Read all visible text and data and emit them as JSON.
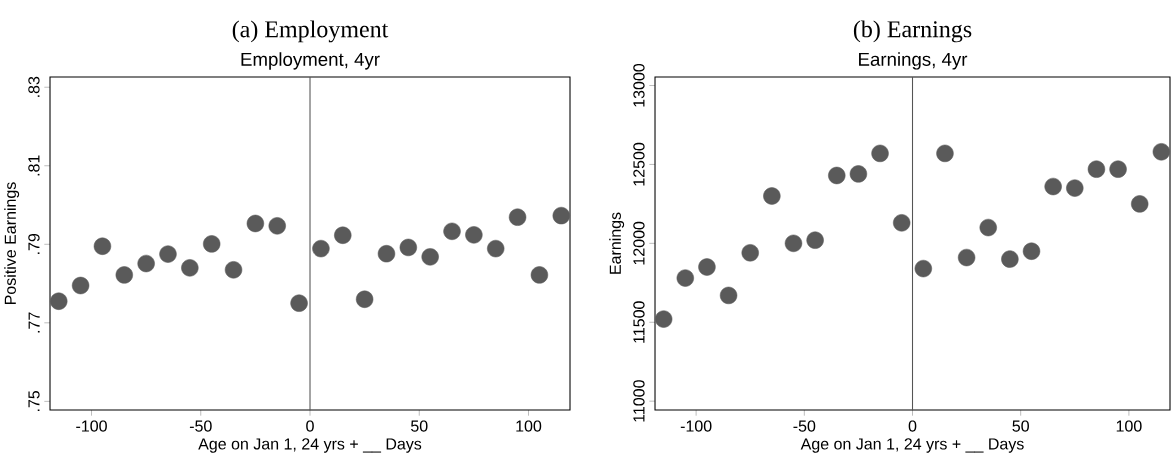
{
  "chart_data": [
    {
      "type": "scatter",
      "title": "(a) Employment",
      "subtitle": "Employment, 4yr",
      "xlabel": "Age on Jan 1, 24 yrs + __ Days",
      "ylabel": "Positive Earnings",
      "grid": false,
      "x": [
        -115,
        -105,
        -95,
        -85,
        -75,
        -65,
        -55,
        -45,
        -35,
        -25,
        -15,
        -5,
        5,
        15,
        25,
        35,
        45,
        55,
        65,
        75,
        85,
        95,
        105,
        115
      ],
      "series": [
        {
          "color": "#5a5a5a",
          "values": [
            0.7755,
            0.7795,
            0.7895,
            0.7822,
            0.7851,
            0.7875,
            0.784,
            0.7901,
            0.7835,
            0.7953,
            0.7947,
            0.775,
            0.7889,
            0.7923,
            0.776,
            0.7876,
            0.7892,
            0.7868,
            0.7933,
            0.7924,
            0.7889,
            0.7969,
            0.7822,
            0.7973
          ]
        }
      ],
      "xlim": [
        -119,
        119
      ],
      "ylim": [
        0.7478,
        0.8326
      ],
      "xticks": [
        -100,
        -50,
        0,
        50,
        100
      ],
      "yticks": [
        {
          "value": 0.75,
          "label": ".75"
        },
        {
          "value": 0.77,
          "label": ".77"
        },
        {
          "value": 0.79,
          "label": ".79"
        },
        {
          "value": 0.81,
          "label": ".81"
        },
        {
          "value": 0.83,
          "label": ".83"
        }
      ],
      "ref_lines": [
        {
          "axis": "x",
          "value": 0,
          "color": "#555555"
        }
      ]
    },
    {
      "type": "scatter",
      "title": "(b) Earnings",
      "subtitle": "Earnings, 4yr",
      "xlabel": "Age on Jan 1, 24 yrs + __ Days",
      "ylabel": "Earnings",
      "grid": false,
      "x": [
        -115,
        -105,
        -95,
        -85,
        -75,
        -65,
        -55,
        -45,
        -35,
        -25,
        -15,
        -5,
        5,
        15,
        25,
        35,
        45,
        55,
        65,
        75,
        85,
        95,
        105,
        115
      ],
      "series": [
        {
          "color": "#5a5a5a",
          "values": [
            11520,
            11780,
            11850,
            11670,
            11940,
            12300,
            12000,
            12020,
            12430,
            12440,
            12570,
            12130,
            11840,
            12570,
            11910,
            12100,
            11900,
            11950,
            12360,
            12350,
            12470,
            12470,
            12250,
            12580
          ]
        }
      ],
      "xlim": [
        -119,
        119
      ],
      "ylim": [
        10944,
        13054
      ],
      "xticks": [
        -100,
        -50,
        0,
        50,
        100
      ],
      "yticks": [
        11000,
        11500,
        12000,
        12500,
        13000
      ],
      "ref_lines": [
        {
          "axis": "x",
          "value": 0,
          "color": "#555555"
        }
      ]
    }
  ]
}
